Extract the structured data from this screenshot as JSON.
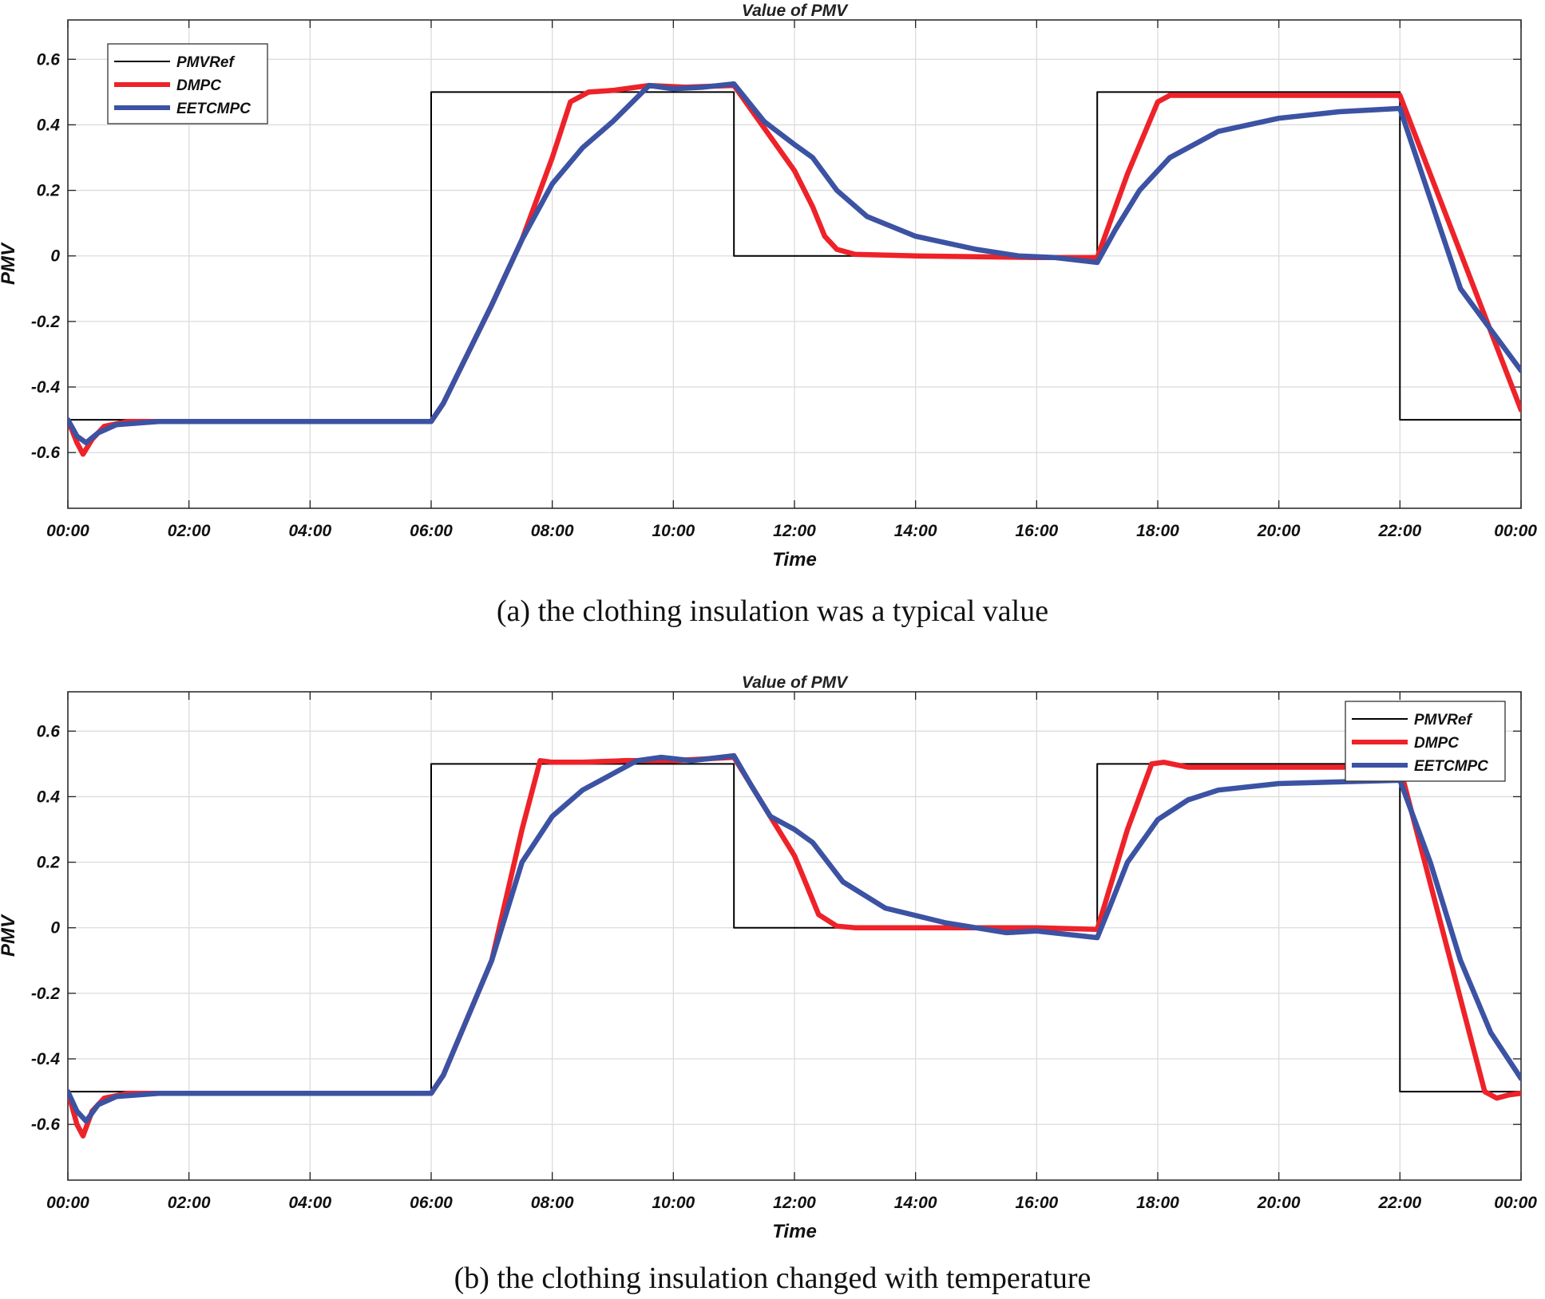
{
  "chart_data": [
    {
      "type": "line",
      "title": "Value of PMV",
      "xlabel": "Time",
      "ylabel": "PMV",
      "xlim": [
        0,
        24
      ],
      "ylim": [
        -0.77,
        0.72
      ],
      "xticks": [
        "00:00",
        "02:00",
        "04:00",
        "06:00",
        "08:00",
        "10:00",
        "12:00",
        "14:00",
        "16:00",
        "18:00",
        "20:00",
        "22:00",
        "00:00"
      ],
      "yticks": [
        "0.6",
        "0.4",
        "0.2",
        "0",
        "-0.2",
        "-0.4",
        "-0.6"
      ],
      "grid": true,
      "legend_position": "top-left",
      "caption": "(a) the clothing insulation was a typical value",
      "series": [
        {
          "name": "PMVRef",
          "color": "#000000",
          "x": [
            0,
            6,
            6,
            11,
            11,
            17,
            17,
            22,
            22,
            24
          ],
          "y": [
            -0.5,
            -0.5,
            0.5,
            0.5,
            0,
            0,
            0.5,
            0.5,
            -0.5,
            -0.5
          ]
        },
        {
          "name": "DMPC",
          "color": "#ee2229",
          "x": [
            0,
            0.15,
            0.25,
            0.4,
            0.6,
            1,
            3,
            6,
            6.2,
            7,
            7.5,
            8,
            8.3,
            8.6,
            9,
            9.6,
            10.2,
            11,
            11.5,
            12,
            12.3,
            12.5,
            12.7,
            13,
            14,
            16,
            17,
            17.5,
            18,
            18.2,
            19,
            22,
            24
          ],
          "y": [
            -0.5,
            -0.57,
            -0.605,
            -0.56,
            -0.52,
            -0.505,
            -0.505,
            -0.505,
            -0.45,
            -0.15,
            0.05,
            0.3,
            0.47,
            0.5,
            0.505,
            0.52,
            0.515,
            0.52,
            0.39,
            0.26,
            0.15,
            0.06,
            0.02,
            0.005,
            0,
            -0.005,
            -0.005,
            0.25,
            0.47,
            0.49,
            0.49,
            0.49,
            -0.47
          ]
        },
        {
          "name": "EETCMPC",
          "color": "#3c52a3",
          "x": [
            0,
            0.15,
            0.3,
            0.5,
            0.8,
            1.5,
            3,
            6,
            6.2,
            7,
            7.5,
            8,
            8.5,
            9,
            9.6,
            10,
            10.5,
            11,
            11.5,
            12,
            12.3,
            12.7,
            13.2,
            14,
            15,
            15.7,
            16.3,
            17,
            17.3,
            17.7,
            18.2,
            19,
            20,
            21,
            22,
            23,
            24
          ],
          "y": [
            -0.5,
            -0.55,
            -0.57,
            -0.54,
            -0.515,
            -0.505,
            -0.505,
            -0.505,
            -0.45,
            -0.15,
            0.05,
            0.22,
            0.33,
            0.41,
            0.52,
            0.51,
            0.515,
            0.525,
            0.41,
            0.34,
            0.3,
            0.2,
            0.12,
            0.06,
            0.02,
            0.0,
            -0.005,
            -0.02,
            0.08,
            0.2,
            0.3,
            0.38,
            0.42,
            0.44,
            0.45,
            -0.1,
            -0.35
          ]
        }
      ]
    },
    {
      "type": "line",
      "title": "Value of PMV",
      "xlabel": "Time",
      "ylabel": "PMV",
      "xlim": [
        0,
        24
      ],
      "ylim": [
        -0.77,
        0.72
      ],
      "xticks": [
        "00:00",
        "02:00",
        "04:00",
        "06:00",
        "08:00",
        "10:00",
        "12:00",
        "14:00",
        "16:00",
        "18:00",
        "20:00",
        "22:00",
        "00:00"
      ],
      "yticks": [
        "0.6",
        "0.4",
        "0.2",
        "0",
        "-0.2",
        "-0.4",
        "-0.6"
      ],
      "grid": true,
      "legend_position": "top-right",
      "caption": "(b) the clothing insulation changed with temperature",
      "series": [
        {
          "name": "PMVRef",
          "color": "#000000",
          "x": [
            0,
            6,
            6,
            11,
            11,
            17,
            17,
            22,
            22,
            24
          ],
          "y": [
            -0.5,
            -0.5,
            0.5,
            0.5,
            0,
            0,
            0.5,
            0.5,
            -0.5,
            -0.5
          ]
        },
        {
          "name": "DMPC",
          "color": "#ee2229",
          "x": [
            0,
            0.15,
            0.25,
            0.4,
            0.6,
            1,
            3,
            6,
            6.2,
            7,
            7.5,
            7.8,
            8,
            8.5,
            9.2,
            10,
            10.5,
            11,
            11.5,
            12,
            12.2,
            12.4,
            12.7,
            13,
            14,
            15,
            16,
            17,
            17.5,
            17.9,
            18.1,
            18.5,
            20,
            22,
            23.4,
            23.6,
            23.8,
            24
          ],
          "y": [
            -0.5,
            -0.6,
            -0.635,
            -0.56,
            -0.52,
            -0.505,
            -0.505,
            -0.505,
            -0.45,
            -0.1,
            0.3,
            0.51,
            0.505,
            0.505,
            0.51,
            0.51,
            0.515,
            0.52,
            0.37,
            0.22,
            0.13,
            0.04,
            0.005,
            0,
            0,
            0,
            0,
            -0.005,
            0.3,
            0.5,
            0.505,
            0.49,
            0.49,
            0.49,
            -0.5,
            -0.52,
            -0.51,
            -0.505
          ]
        },
        {
          "name": "EETCMPC",
          "color": "#3c52a3",
          "x": [
            0,
            0.15,
            0.3,
            0.5,
            0.8,
            1.5,
            3,
            6,
            6.2,
            7,
            7.5,
            8,
            8.5,
            9,
            9.4,
            9.8,
            10.3,
            11,
            11.3,
            11.6,
            12,
            12.3,
            12.8,
            13.5,
            14.5,
            15.5,
            16,
            17,
            17.2,
            17.5,
            18,
            18.5,
            19,
            20,
            22,
            22.5,
            23,
            23.5,
            24
          ],
          "y": [
            -0.5,
            -0.56,
            -0.59,
            -0.54,
            -0.515,
            -0.505,
            -0.505,
            -0.505,
            -0.45,
            -0.1,
            0.2,
            0.34,
            0.42,
            0.47,
            0.51,
            0.52,
            0.51,
            0.525,
            0.43,
            0.34,
            0.3,
            0.26,
            0.14,
            0.06,
            0.015,
            -0.015,
            -0.01,
            -0.03,
            0.06,
            0.2,
            0.33,
            0.39,
            0.42,
            0.44,
            0.45,
            0.2,
            -0.1,
            -0.32,
            -0.46
          ]
        }
      ]
    }
  ]
}
